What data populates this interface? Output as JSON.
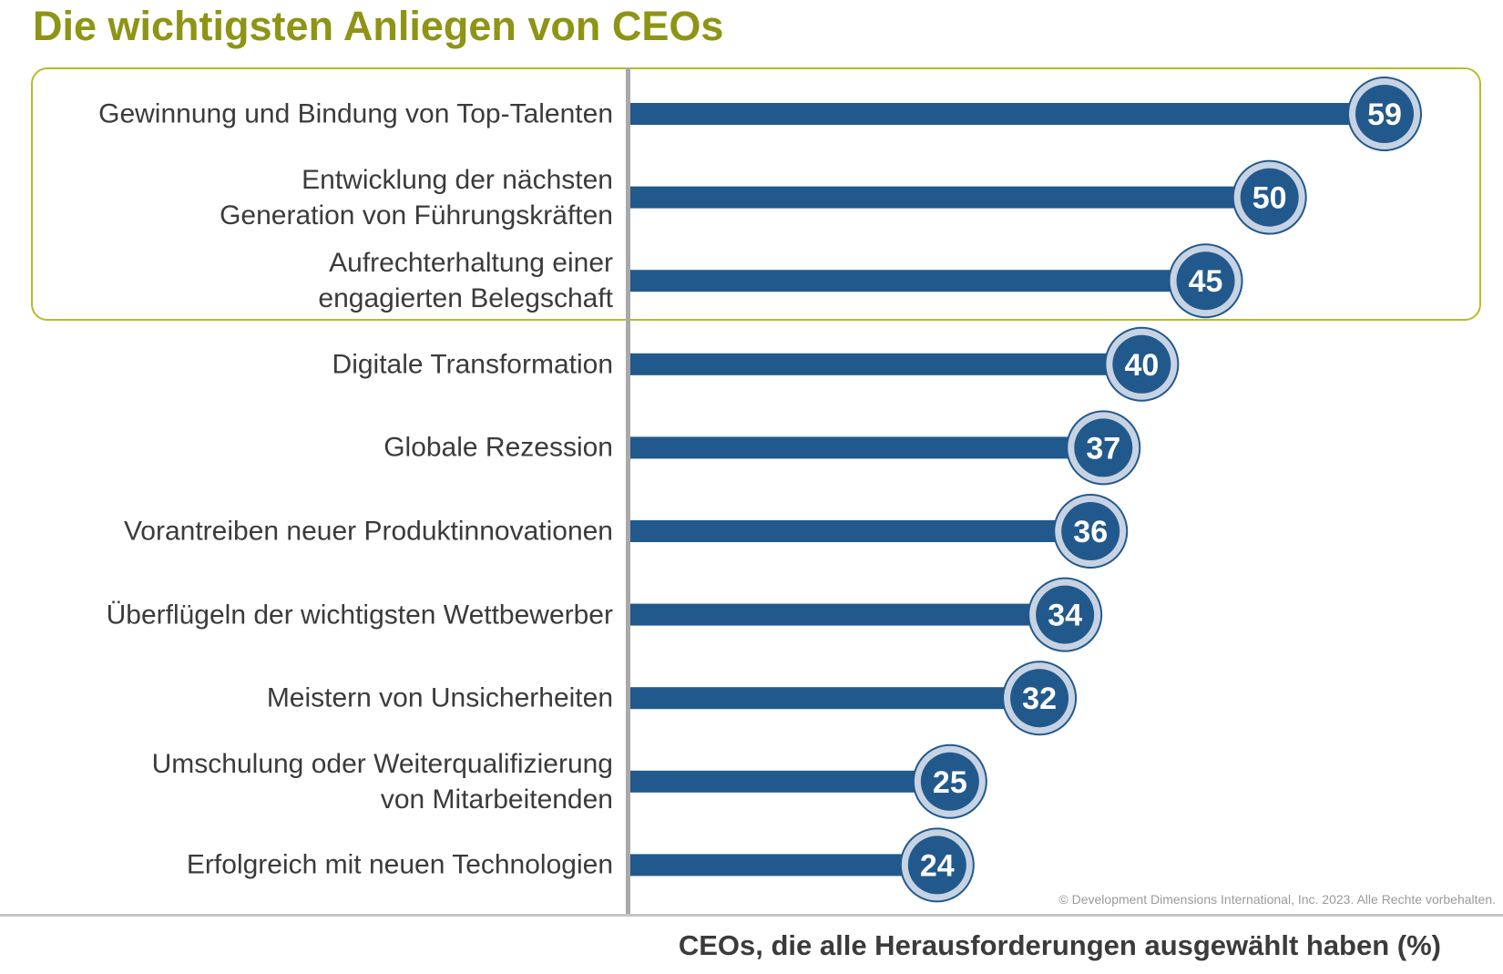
{
  "colors": {
    "title": "#8e9414",
    "bar": "#22598d",
    "ring": "#c7d3e3",
    "highlight_border": "#b7bc2a"
  },
  "chart_data": {
    "type": "bar",
    "orientation": "horizontal",
    "title": "Die wichtigsten Anliegen von CEOs",
    "xlabel": "CEOs, die alle Herausforderungen ausgewählt haben (%)",
    "ylabel": "",
    "xlim": [
      0,
      66
    ],
    "categories": [
      [
        "Gewinnung und Bindung von Top-Talenten"
      ],
      [
        "Entwicklung der nächsten",
        "Generation von Führungskräften"
      ],
      [
        "Aufrechterhaltung einer",
        "engagierten Belegschaft"
      ],
      [
        "Digitale Transformation"
      ],
      [
        "Globale Rezession"
      ],
      [
        "Vorantreiben neuer Produktinnovationen"
      ],
      [
        "Überflügeln der wichtigsten Wettbewerber"
      ],
      [
        "Meistern von Unsicherheiten"
      ],
      [
        "Umschulung oder Weiterqualifizierung",
        "von Mitarbeitenden"
      ],
      [
        "Erfolgreich mit neuen Technologien"
      ]
    ],
    "values": [
      59,
      50,
      45,
      40,
      37,
      36,
      34,
      32,
      25,
      24
    ],
    "highlighted_count": 3,
    "footnote": "© Development Dimensions International, Inc. 2023. Alle Rechte vorbehalten."
  }
}
